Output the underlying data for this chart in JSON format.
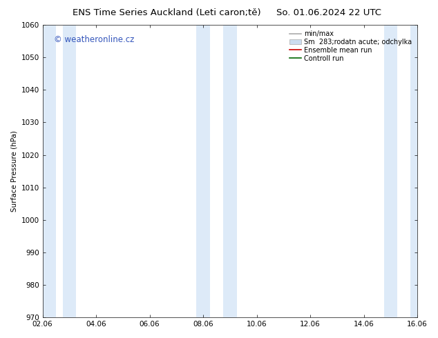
{
  "title_left": "ENS Time Series Auckland (Leti caron;tě)",
  "title_right": "So. 01.06.2024 22 UTC",
  "ylabel": "Surface Pressure (hPa)",
  "ylim": [
    970,
    1060
  ],
  "yticks": [
    970,
    980,
    990,
    1000,
    1010,
    1020,
    1030,
    1040,
    1050,
    1060
  ],
  "xlim_start": 0,
  "xlim_end": 14,
  "xtick_labels": [
    "02.06",
    "04.06",
    "06.06",
    "08.06",
    "10.06",
    "12.06",
    "14.06",
    "16.06"
  ],
  "xtick_positions": [
    0,
    2,
    4,
    6,
    8,
    10,
    12,
    14
  ],
  "bg_color": "#ffffff",
  "plot_bg_color": "#ffffff",
  "shaded_bands": [
    {
      "x_start": 0.0,
      "x_end": 0.5,
      "color": "#ddeaf8"
    },
    {
      "x_start": 0.75,
      "x_end": 1.25,
      "color": "#ddeaf8"
    },
    {
      "x_start": 5.75,
      "x_end": 6.25,
      "color": "#ddeaf8"
    },
    {
      "x_start": 6.75,
      "x_end": 7.25,
      "color": "#ddeaf8"
    },
    {
      "x_start": 12.75,
      "x_end": 13.25,
      "color": "#ddeaf8"
    },
    {
      "x_start": 13.75,
      "x_end": 14.0,
      "color": "#ddeaf8"
    }
  ],
  "watermark_text": "© weatheronline.cz",
  "watermark_color": "#3355bb",
  "legend_entries": [
    {
      "label": "min/max",
      "color": "#aaaaaa",
      "style": "line"
    },
    {
      "label": "Sm  283;rodatn acute; odchylka",
      "color": "#ccddf0",
      "style": "box"
    },
    {
      "label": "Ensemble mean run",
      "color": "#cc0000",
      "style": "line"
    },
    {
      "label": "Controll run",
      "color": "#006600",
      "style": "line"
    }
  ],
  "grid_color": "#bbbbbb",
  "font_size_title": 9.5,
  "font_size_axis": 7.5,
  "font_size_legend": 7,
  "font_size_watermark": 8.5
}
